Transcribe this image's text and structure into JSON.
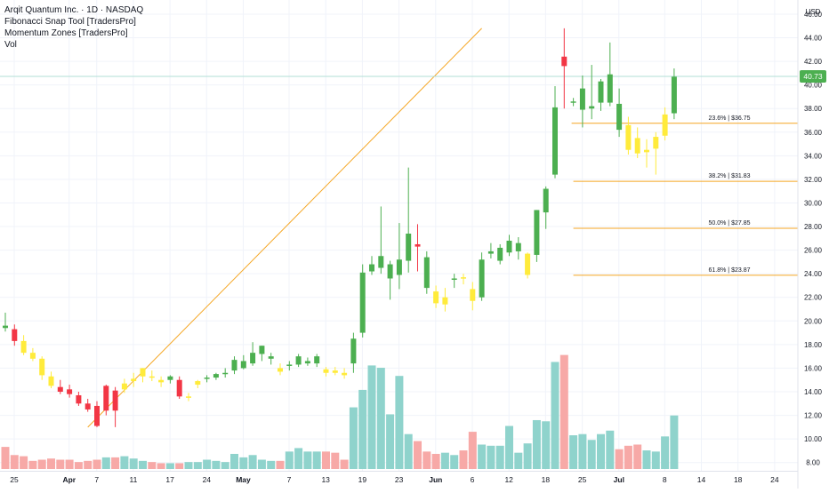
{
  "header": {
    "title": "Arqit Quantum Inc. · 1D · NASDAQ",
    "indicators": [
      "Fibonacci Snap Tool [TradersPro]",
      "Momentum Zones [TradersPro]",
      "Vol"
    ]
  },
  "price_axis": {
    "currency": "USD",
    "ticks": [
      "46.00",
      "44.00",
      "42.00",
      "40.00",
      "38.00",
      "36.00",
      "34.00",
      "32.00",
      "30.00",
      "28.00",
      "26.00",
      "24.00",
      "22.00",
      "20.00",
      "18.00",
      "16.00",
      "14.00",
      "12.00",
      "10.00",
      "8.00"
    ],
    "last_price": "40.73"
  },
  "time_axis": {
    "labels": [
      "25",
      "Apr",
      "7",
      "11",
      "17",
      "24",
      "May",
      "7",
      "13",
      "19",
      "23",
      "Jun",
      "6",
      "12",
      "18",
      "25",
      "Jul",
      "8",
      "14",
      "18",
      "24"
    ]
  },
  "fib_levels": [
    {
      "label": "23.6% | $36.75",
      "price": 36.75
    },
    {
      "label": "38.2% | $31.83",
      "price": 31.83
    },
    {
      "label": "50.0% | $27.85",
      "price": 27.85
    },
    {
      "label": "61.8% | $23.87",
      "price": 23.87
    }
  ],
  "colors": {
    "up": "#4caf50",
    "down": "#f23645",
    "neutral": "#ffeb3b",
    "vol_up": "#8fd3cc",
    "vol_down": "#f7a9a7",
    "trendline": "#f5a623",
    "fib": "#f5a623",
    "price_label_bg": "#4caf50",
    "price_line": "#b2dfd5"
  },
  "chart_data": {
    "type": "candlestick",
    "title": "Arqit Quantum Inc. · 1D · NASDAQ",
    "ylabel": "USD",
    "ylim": [
      7.3,
      47.2
    ],
    "volume_max": 10,
    "trendline": {
      "from": {
        "bar": 9,
        "price": 11.0
      },
      "to": {
        "bar": 52,
        "price": 44.8
      }
    },
    "candles": [
      {
        "o": 19.6,
        "h": 20.7,
        "l": 19.1,
        "c": 19.4,
        "z": "up",
        "v": 1.9
      },
      {
        "o": 19.3,
        "h": 19.7,
        "l": 17.9,
        "c": 18.3,
        "z": "down",
        "v": 1.2
      },
      {
        "o": 18.3,
        "h": 18.8,
        "l": 17.1,
        "c": 17.3,
        "z": "neutral",
        "v": 1.1
      },
      {
        "o": 17.3,
        "h": 17.7,
        "l": 16.6,
        "c": 16.8,
        "z": "neutral",
        "v": 0.7
      },
      {
        "o": 16.8,
        "h": 17.0,
        "l": 15.0,
        "c": 15.4,
        "z": "neutral",
        "v": 0.8
      },
      {
        "o": 15.3,
        "h": 15.7,
        "l": 14.3,
        "c": 14.5,
        "z": "neutral",
        "v": 0.9
      },
      {
        "o": 14.4,
        "h": 15.0,
        "l": 13.8,
        "c": 14.0,
        "z": "down",
        "v": 0.8
      },
      {
        "o": 14.2,
        "h": 14.6,
        "l": 13.5,
        "c": 13.8,
        "z": "down",
        "v": 0.8
      },
      {
        "o": 13.7,
        "h": 14.0,
        "l": 12.8,
        "c": 13.0,
        "z": "down",
        "v": 0.6
      },
      {
        "o": 13.0,
        "h": 13.4,
        "l": 12.3,
        "c": 12.5,
        "z": "down",
        "v": 0.7
      },
      {
        "o": 12.8,
        "h": 13.2,
        "l": 11.0,
        "c": 11.1,
        "z": "down",
        "v": 0.8
      },
      {
        "o": 12.4,
        "h": 14.6,
        "l": 12.0,
        "c": 14.5,
        "z": "down",
        "v": 1.0
      },
      {
        "o": 14.1,
        "h": 14.4,
        "l": 11.0,
        "c": 12.4,
        "z": "down",
        "v": 1.0
      },
      {
        "o": 14.2,
        "h": 15.1,
        "l": 13.9,
        "c": 14.7,
        "z": "neutral",
        "v": 1.1
      },
      {
        "o": 14.9,
        "h": 15.6,
        "l": 14.4,
        "c": 15.1,
        "z": "neutral",
        "v": 0.9
      },
      {
        "o": 15.3,
        "h": 16.0,
        "l": 14.8,
        "c": 16.0,
        "z": "neutral",
        "v": 0.7
      },
      {
        "o": 15.3,
        "h": 15.8,
        "l": 14.9,
        "c": 15.2,
        "z": "neutral",
        "v": 0.6
      },
      {
        "o": 15.0,
        "h": 15.3,
        "l": 14.4,
        "c": 14.8,
        "z": "neutral",
        "v": 0.5
      },
      {
        "o": 15.0,
        "h": 15.4,
        "l": 14.7,
        "c": 15.3,
        "z": "up",
        "v": 0.5
      },
      {
        "o": 15.0,
        "h": 15.3,
        "l": 13.4,
        "c": 13.6,
        "z": "down",
        "v": 0.5
      },
      {
        "o": 13.6,
        "h": 13.9,
        "l": 13.2,
        "c": 13.6,
        "z": "neutral",
        "v": 0.6
      },
      {
        "o": 14.6,
        "h": 15.0,
        "l": 14.3,
        "c": 14.9,
        "z": "neutral",
        "v": 0.6
      },
      {
        "o": 15.1,
        "h": 15.4,
        "l": 14.8,
        "c": 15.2,
        "z": "up",
        "v": 0.8
      },
      {
        "o": 15.2,
        "h": 15.6,
        "l": 15.0,
        "c": 15.5,
        "z": "up",
        "v": 0.7
      },
      {
        "o": 15.5,
        "h": 16.0,
        "l": 15.2,
        "c": 15.6,
        "z": "up",
        "v": 0.6
      },
      {
        "o": 15.8,
        "h": 17.0,
        "l": 15.5,
        "c": 16.7,
        "z": "up",
        "v": 1.3
      },
      {
        "o": 16.0,
        "h": 17.1,
        "l": 15.9,
        "c": 16.6,
        "z": "up",
        "v": 1.0
      },
      {
        "o": 16.4,
        "h": 18.2,
        "l": 16.2,
        "c": 17.3,
        "z": "up",
        "v": 1.2
      },
      {
        "o": 17.2,
        "h": 17.9,
        "l": 16.6,
        "c": 17.9,
        "z": "up",
        "v": 0.8
      },
      {
        "o": 16.8,
        "h": 17.3,
        "l": 16.3,
        "c": 17.0,
        "z": "up",
        "v": 0.7
      },
      {
        "o": 16.0,
        "h": 16.4,
        "l": 15.4,
        "c": 15.7,
        "z": "neutral",
        "v": 0.7
      },
      {
        "o": 16.2,
        "h": 16.6,
        "l": 15.8,
        "c": 16.3,
        "z": "up",
        "v": 1.5
      },
      {
        "o": 16.3,
        "h": 17.2,
        "l": 16.1,
        "c": 17.0,
        "z": "up",
        "v": 1.8
      },
      {
        "o": 16.4,
        "h": 16.9,
        "l": 16.2,
        "c": 16.6,
        "z": "up",
        "v": 1.5
      },
      {
        "o": 16.4,
        "h": 17.2,
        "l": 16.1,
        "c": 17.0,
        "z": "up",
        "v": 1.5
      },
      {
        "o": 15.9,
        "h": 16.1,
        "l": 15.3,
        "c": 15.6,
        "z": "neutral",
        "v": 1.5
      },
      {
        "o": 15.8,
        "h": 16.1,
        "l": 15.4,
        "c": 15.6,
        "z": "neutral",
        "v": 1.4
      },
      {
        "o": 15.6,
        "h": 16.0,
        "l": 15.1,
        "c": 15.4,
        "z": "neutral",
        "v": 0.8
      },
      {
        "o": 16.4,
        "h": 19.0,
        "l": 15.6,
        "c": 18.5,
        "z": "up",
        "v": 5.3
      },
      {
        "o": 19.0,
        "h": 24.8,
        "l": 18.6,
        "c": 24.1,
        "z": "up",
        "v": 6.8
      },
      {
        "o": 24.2,
        "h": 25.5,
        "l": 23.9,
        "c": 24.8,
        "z": "up",
        "v": 8.9
      },
      {
        "o": 24.5,
        "h": 29.7,
        "l": 24.0,
        "c": 25.5,
        "z": "up",
        "v": 8.7
      },
      {
        "o": 23.6,
        "h": 25.1,
        "l": 21.8,
        "c": 24.8,
        "z": "up",
        "v": 4.7
      },
      {
        "o": 23.9,
        "h": 28.3,
        "l": 22.7,
        "c": 25.2,
        "z": "up",
        "v": 8.0
      },
      {
        "o": 25.1,
        "h": 33.0,
        "l": 24.1,
        "c": 27.4,
        "z": "up",
        "v": 3.0
      },
      {
        "o": 26.5,
        "h": 28.2,
        "l": 24.2,
        "c": 26.3,
        "z": "down",
        "v": 2.4
      },
      {
        "o": 25.4,
        "h": 25.9,
        "l": 22.3,
        "c": 22.8,
        "z": "up",
        "v": 1.5
      },
      {
        "o": 22.5,
        "h": 23.0,
        "l": 21.1,
        "c": 21.5,
        "z": "neutral",
        "v": 1.3
      },
      {
        "o": 21.4,
        "h": 22.8,
        "l": 20.8,
        "c": 22.0,
        "z": "neutral",
        "v": 1.4
      },
      {
        "o": 23.6,
        "h": 24.0,
        "l": 22.8,
        "c": 23.6,
        "z": "up",
        "v": 1.2
      },
      {
        "o": 23.7,
        "h": 24.0,
        "l": 23.1,
        "c": 23.6,
        "z": "neutral",
        "v": 1.6
      },
      {
        "o": 22.7,
        "h": 23.3,
        "l": 20.9,
        "c": 21.7,
        "z": "neutral",
        "v": 3.2
      },
      {
        "o": 22.0,
        "h": 25.8,
        "l": 21.7,
        "c": 25.2,
        "z": "up",
        "v": 2.1
      },
      {
        "o": 25.7,
        "h": 26.6,
        "l": 25.3,
        "c": 25.9,
        "z": "up",
        "v": 2.0
      },
      {
        "o": 25.1,
        "h": 26.5,
        "l": 24.8,
        "c": 26.2,
        "z": "up",
        "v": 2.0
      },
      {
        "o": 25.8,
        "h": 27.3,
        "l": 25.5,
        "c": 26.8,
        "z": "up",
        "v": 3.7
      },
      {
        "o": 25.9,
        "h": 27.1,
        "l": 25.2,
        "c": 26.6,
        "z": "up",
        "v": 1.4
      },
      {
        "o": 23.9,
        "h": 25.8,
        "l": 23.6,
        "c": 25.7,
        "z": "neutral",
        "v": 2.2
      },
      {
        "o": 25.6,
        "h": 29.4,
        "l": 25.0,
        "c": 29.4,
        "z": "up",
        "v": 4.2
      },
      {
        "o": 29.2,
        "h": 31.4,
        "l": 27.8,
        "c": 31.2,
        "z": "up",
        "v": 4.1
      },
      {
        "o": 32.4,
        "h": 39.9,
        "l": 32.1,
        "c": 38.1,
        "z": "up",
        "v": 9.2
      },
      {
        "o": 42.4,
        "h": 44.8,
        "l": 38.0,
        "c": 41.6,
        "z": "down",
        "v": 9.8
      },
      {
        "o": 38.6,
        "h": 38.9,
        "l": 38.2,
        "c": 38.6,
        "z": "up",
        "v": 2.9
      },
      {
        "o": 37.9,
        "h": 40.8,
        "l": 36.4,
        "c": 39.7,
        "z": "up",
        "v": 3.0
      },
      {
        "o": 38.0,
        "h": 41.7,
        "l": 37.1,
        "c": 38.2,
        "z": "up",
        "v": 2.5
      },
      {
        "o": 38.5,
        "h": 40.5,
        "l": 37.8,
        "c": 40.3,
        "z": "up",
        "v": 3.0
      },
      {
        "o": 38.5,
        "h": 43.6,
        "l": 38.2,
        "c": 40.9,
        "z": "up",
        "v": 3.3
      },
      {
        "o": 38.4,
        "h": 39.7,
        "l": 35.6,
        "c": 36.2,
        "z": "up",
        "v": 1.7
      },
      {
        "o": 36.6,
        "h": 37.3,
        "l": 34.1,
        "c": 34.5,
        "z": "neutral",
        "v": 2.0
      },
      {
        "o": 35.5,
        "h": 36.4,
        "l": 33.8,
        "c": 34.2,
        "z": "neutral",
        "v": 2.1
      },
      {
        "o": 34.3,
        "h": 35.4,
        "l": 33.0,
        "c": 34.5,
        "z": "neutral",
        "v": 1.6
      },
      {
        "o": 34.6,
        "h": 36.0,
        "l": 32.4,
        "c": 35.6,
        "z": "neutral",
        "v": 1.5
      },
      {
        "o": 35.7,
        "h": 38.1,
        "l": 35.3,
        "c": 37.5,
        "z": "neutral",
        "v": 2.8
      },
      {
        "o": 37.6,
        "h": 41.4,
        "l": 37.1,
        "c": 40.7,
        "z": "up",
        "v": 4.6
      }
    ]
  }
}
